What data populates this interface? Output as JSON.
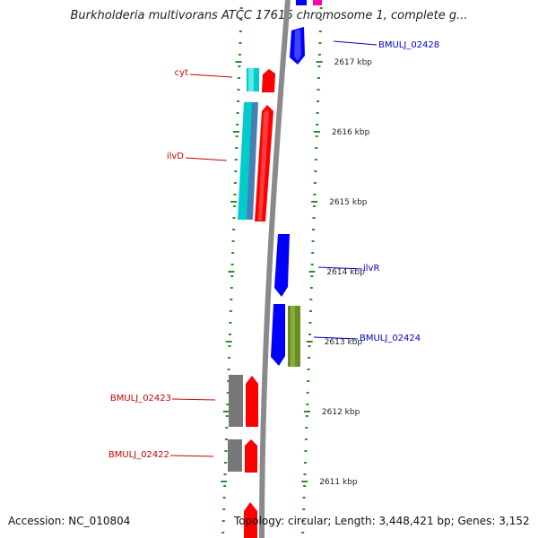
{
  "title": "Burkholderia multivorans ATCC 17616 chromosome 1, complete g...",
  "footer": {
    "accession": "Accession: NC_010804",
    "topology": "Topology: circular; Length: 3,448,421 bp; Genes: 3,152"
  },
  "colors": {
    "backbone": "#8a8a8a",
    "tick": "#2e8b2e",
    "forward_label": "#0000cc",
    "reverse_label": "#cc0000",
    "gene_red": "#ff0000",
    "gene_blue": "#0000ff",
    "gene_cyan": "#00cccc",
    "gene_steel": "#4a7fb5",
    "gene_olive": "#6b8e23",
    "gene_gray": "#777777",
    "gene_magenta": "#ff00aa"
  },
  "ticks": [
    {
      "label": "2617 kbp"
    },
    {
      "label": "2616 kbp"
    },
    {
      "label": "2615 kbp"
    },
    {
      "label": "2614 kbp"
    },
    {
      "label": "2613 kbp"
    },
    {
      "label": "2612 kbp"
    },
    {
      "label": "2611 kbp"
    }
  ],
  "gene_labels": [
    {
      "text": "BMULJ_02428",
      "strand": "forward"
    },
    {
      "text": "cyt",
      "strand": "reverse"
    },
    {
      "text": "ilvD",
      "strand": "reverse"
    },
    {
      "text": "ilvR",
      "strand": "forward"
    },
    {
      "text": "BMULJ_02424",
      "strand": "forward"
    },
    {
      "text": "BMULJ_02423",
      "strand": "reverse"
    },
    {
      "text": "BMULJ_02422",
      "strand": "reverse"
    }
  ]
}
